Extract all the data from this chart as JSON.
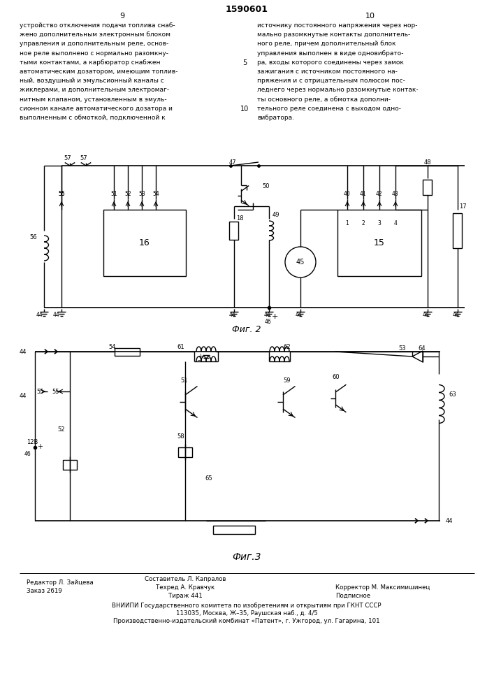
{
  "patent_number": "1590601",
  "page_left": "9",
  "page_right": "10",
  "text_left": "устройство отключения подачи топлива снаб-\nжено дополнительным электронным блоком\nуправления и дополнительным реле, основ-\nное реле выполнено с нормально разомкну-\nтыми контактами, а карбюратор снабжен\nавтоматическим дозатором, имеющим топлив-\nный, воздушный и эмульсионный каналы с\nжиклерами, и дополнительным электромаг-\nнитным клапаном, установленным в эмуль-\nсионном канале автоматического дозатора и\nвыполненным с обмоткой, подключенной к",
  "text_right": "источнику постоянного напряжения через нор-\nмально разомкнутые контакты дополнитель-\nного реле, причем дополнительный блок\nуправления выполнен в виде одновибрато-\nра, входы которого соединены через замок\nзажигания с источником постоянного на-\nпряжения и с отрицательным полюсом пос-\nледнего через нормально разомкнутые контак-\nты основного реле, а обмотка дополни-\nтельного реле соединена с выходом одно-\nвибратора.",
  "line_number_5": "5",
  "line_number_10": "10",
  "fig2_label": "Фиг. 2",
  "fig3_label": "Фиг.3",
  "footer_line1_col1": "Редактор Л. Зайцева",
  "footer_line2_col1": "Заказ 2619",
  "footer_line1_col2": "Составитель Л. Капралов",
  "footer_line2_col2": "Техред А. Кравчук",
  "footer_line3_col2": "Тираж 441",
  "footer_line2_col3": "Корректор М. Максимишинец",
  "footer_line3_col3": "Подписное",
  "footer_vniipи": "ВНИИПИ Государственного комитета по изобретениям и открытиям при ГКНТ СССР",
  "footer_address1": "113035, Москва, Ж–35, Раушская наб., д. 4/5",
  "footer_address2": "Производственно-издательский комбинат «Патент», г. Ужгород, ул. Гагарина, 101",
  "bg_color": "#ffffff",
  "text_color": "#000000"
}
